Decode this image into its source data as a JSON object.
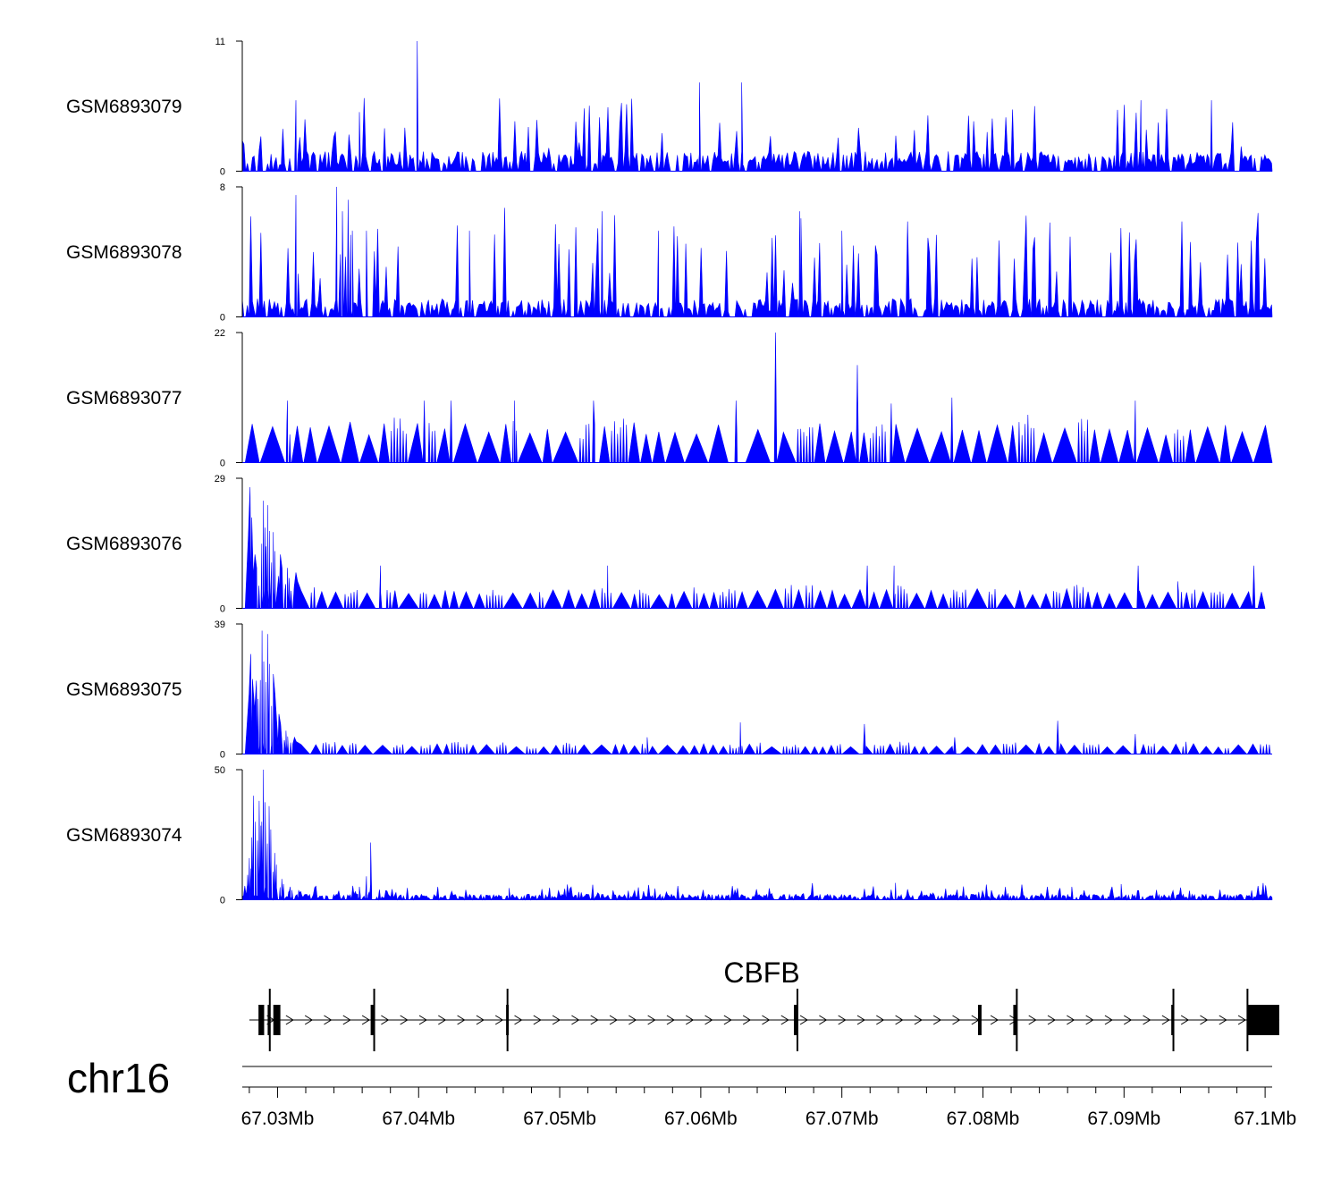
{
  "chart_data": {
    "type": "area",
    "title": "",
    "chromosome": "chr16",
    "gene": {
      "name": "CBFB",
      "strand": "+",
      "start": 67028000,
      "end": 67101000,
      "exons": [
        {
          "start": 67028650,
          "end": 67029050
        },
        {
          "start": 67029300,
          "end": 67029450
        },
        {
          "start": 67029700,
          "end": 67030200
        },
        {
          "start": 67036600,
          "end": 67036850
        },
        {
          "start": 67046200,
          "end": 67046300
        },
        {
          "start": 67066600,
          "end": 67066850
        },
        {
          "start": 67079650,
          "end": 67079900
        },
        {
          "start": 67082150,
          "end": 67082400
        },
        {
          "start": 67093350,
          "end": 67093500
        },
        {
          "start": 67098750,
          "end": 67101000
        }
      ]
    },
    "x_axis": {
      "min": 67027500,
      "max": 67100500,
      "ticks": [
        67030000,
        67040000,
        67050000,
        67060000,
        67070000,
        67080000,
        67090000,
        67100000
      ],
      "tick_labels": [
        "67.03Mb",
        "67.04Mb",
        "67.05Mb",
        "67.06Mb",
        "67.07Mb",
        "67.08Mb",
        "67.09Mb",
        "67.1Mb"
      ]
    },
    "series": [
      {
        "name": "GSM6893079",
        "ymax": 11,
        "y_tick_labels": [
          "11",
          "0"
        ],
        "color": "#0000ff",
        "pattern": "uniform",
        "base": 1.2,
        "spread": 3.5,
        "peaks": [
          [
            67039900,
            11
          ],
          [
            67059900,
            7.5
          ],
          [
            67062900,
            7.5
          ],
          [
            67031300,
            6
          ],
          [
            67091200,
            6
          ],
          [
            67096200,
            6
          ],
          [
            67035800,
            5
          ]
        ]
      },
      {
        "name": "GSM6893078",
        "ymax": 8,
        "y_tick_labels": [
          "8",
          "0"
        ],
        "color": "#0000ff",
        "pattern": "uniform",
        "base": 0.8,
        "spread": 4,
        "peaks": [
          [
            67031300,
            7.5
          ],
          [
            67034200,
            8
          ],
          [
            67034600,
            6.5
          ],
          [
            67035000,
            7.2
          ],
          [
            67035300,
            5.3
          ],
          [
            67036300,
            5.3
          ],
          [
            67043600,
            5.3
          ],
          [
            67053000,
            6.5
          ],
          [
            67057000,
            5.3
          ],
          [
            67067000,
            6.5
          ],
          [
            67070000,
            5.3
          ]
        ]
      },
      {
        "name": "GSM6893077",
        "ymax": 22,
        "y_tick_labels": [
          "22",
          "0"
        ],
        "color": "#0000ff",
        "pattern": "sparse",
        "base": 5.5,
        "spread": 2,
        "peaks": [
          [
            67065300,
            22
          ],
          [
            67071100,
            16.5
          ],
          [
            67030700,
            10.5
          ],
          [
            67040400,
            10.5
          ],
          [
            67042300,
            10.5
          ],
          [
            67046800,
            10.5
          ],
          [
            67052400,
            10.5
          ],
          [
            67062500,
            10.5
          ],
          [
            67073500,
            10
          ],
          [
            67077800,
            11
          ],
          [
            67090800,
            10.5
          ]
        ]
      },
      {
        "name": "GSM6893076",
        "ymax": 29,
        "y_tick_labels": [
          "29",
          "0"
        ],
        "color": "#0000ff",
        "pattern": "promoter",
        "base": 3.5,
        "spread": 2,
        "end": 67100000,
        "promoter": [
          [
            67028050,
            27
          ],
          [
            67028400,
            12
          ],
          [
            67029000,
            24
          ],
          [
            67029300,
            23
          ],
          [
            67029700,
            17
          ],
          [
            67030200,
            12
          ],
          [
            67030700,
            9
          ],
          [
            67031300,
            8
          ]
        ],
        "peaks": [
          [
            67037300,
            9.5
          ],
          [
            67053400,
            9.5
          ],
          [
            67071800,
            9.5
          ],
          [
            67073700,
            9.5
          ],
          [
            67091000,
            9.5
          ],
          [
            67093800,
            6
          ],
          [
            67099200,
            9.5
          ]
        ]
      },
      {
        "name": "GSM6893075",
        "ymax": 39,
        "y_tick_labels": [
          "39",
          "0"
        ],
        "color": "#0000ff",
        "pattern": "promoter",
        "base": 2.5,
        "spread": 2.5,
        "promoter": [
          [
            67028100,
            30
          ],
          [
            67028500,
            22
          ],
          [
            67028900,
            37
          ],
          [
            67029300,
            36
          ],
          [
            67029700,
            24
          ],
          [
            67030100,
            12
          ],
          [
            67030600,
            7
          ],
          [
            67031200,
            5
          ]
        ],
        "peaks": [
          [
            67056200,
            5
          ],
          [
            67062800,
            9.5
          ],
          [
            67071600,
            9
          ],
          [
            67078000,
            5
          ],
          [
            67085300,
            10
          ],
          [
            67090800,
            6
          ]
        ]
      },
      {
        "name": "GSM6893074",
        "ymax": 50,
        "y_tick_labels": [
          "50",
          "0"
        ],
        "color": "#0000ff",
        "pattern": "dense",
        "base": 1.5,
        "spread": 3,
        "promoter": [
          [
            67028000,
            16
          ],
          [
            67028300,
            40
          ],
          [
            67028700,
            38
          ],
          [
            67029000,
            50
          ],
          [
            67029400,
            36
          ],
          [
            67029800,
            18
          ],
          [
            67030300,
            8
          ],
          [
            67030900,
            5
          ],
          [
            67031500,
            3.5
          ]
        ],
        "peaks": [
          [
            67036600,
            22
          ],
          [
            67036300,
            9
          ],
          [
            67035800,
            5
          ],
          [
            67046400,
            4.5
          ],
          [
            67073800,
            6.5
          ],
          [
            67086300,
            5
          ],
          [
            67089800,
            6
          ]
        ]
      }
    ]
  }
}
